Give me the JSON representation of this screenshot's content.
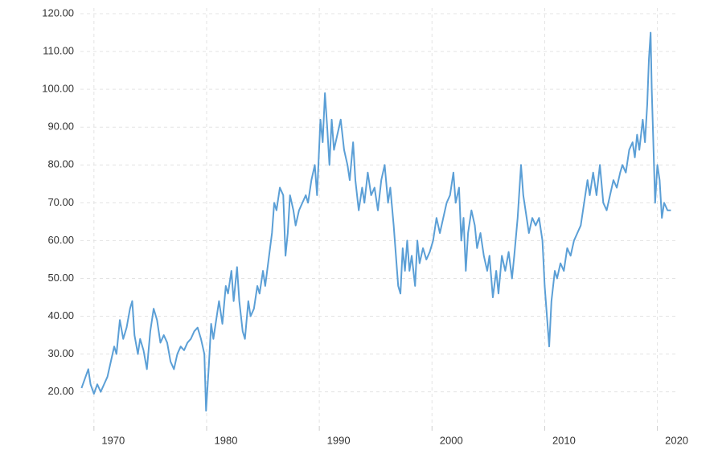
{
  "chart_data": {
    "type": "line",
    "x": [
      1968.9,
      1969.2,
      1969.5,
      1969.7,
      1970.0,
      1970.3,
      1970.6,
      1970.9,
      1971.2,
      1971.5,
      1971.8,
      1972.0,
      1972.3,
      1972.6,
      1972.9,
      1973.2,
      1973.4,
      1973.6,
      1973.9,
      1974.1,
      1974.4,
      1974.7,
      1975.0,
      1975.3,
      1975.6,
      1975.9,
      1976.2,
      1976.5,
      1976.8,
      1977.1,
      1977.4,
      1977.7,
      1978.0,
      1978.3,
      1978.6,
      1978.9,
      1979.2,
      1979.5,
      1979.8,
      1979.95,
      1980.2,
      1980.4,
      1980.6,
      1980.9,
      1981.1,
      1981.4,
      1981.7,
      1981.9,
      1982.2,
      1982.4,
      1982.7,
      1982.9,
      1983.2,
      1983.4,
      1983.7,
      1983.9,
      1984.2,
      1984.5,
      1984.7,
      1985.0,
      1985.2,
      1985.5,
      1985.8,
      1986.0,
      1986.2,
      1986.5,
      1986.8,
      1987.0,
      1987.2,
      1987.4,
      1987.7,
      1987.9,
      1988.2,
      1988.5,
      1988.8,
      1989.0,
      1989.3,
      1989.6,
      1989.8,
      1990.1,
      1990.3,
      1990.5,
      1990.7,
      1990.9,
      1991.1,
      1991.3,
      1991.6,
      1991.9,
      1992.2,
      1992.5,
      1992.7,
      1993.0,
      1993.2,
      1993.5,
      1993.8,
      1994.0,
      1994.3,
      1994.6,
      1994.9,
      1995.2,
      1995.5,
      1995.8,
      1996.1,
      1996.3,
      1996.6,
      1996.8,
      1997.0,
      1997.2,
      1997.4,
      1997.6,
      1997.8,
      1998.0,
      1998.2,
      1998.5,
      1998.7,
      1998.9,
      1999.2,
      1999.5,
      1999.8,
      2000.1,
      2000.4,
      2000.7,
      2001.0,
      2001.3,
      2001.6,
      2001.9,
      2002.1,
      2002.4,
      2002.6,
      2002.8,
      2003.0,
      2003.2,
      2003.5,
      2003.8,
      2004.0,
      2004.3,
      2004.6,
      2004.9,
      2005.1,
      2005.4,
      2005.7,
      2005.9,
      2006.2,
      2006.5,
      2006.8,
      2007.1,
      2007.3,
      2007.6,
      2007.9,
      2008.1,
      2008.4,
      2008.6,
      2008.9,
      2009.2,
      2009.5,
      2009.8,
      2010.0,
      2010.2,
      2010.4,
      2010.6,
      2010.9,
      2011.1,
      2011.4,
      2011.7,
      2012.0,
      2012.3,
      2012.6,
      2012.9,
      2013.2,
      2013.5,
      2013.8,
      2014.0,
      2014.3,
      2014.6,
      2014.9,
      2015.2,
      2015.5,
      2015.8,
      2016.1,
      2016.4,
      2016.7,
      2016.9,
      2017.2,
      2017.5,
      2017.8,
      2018.0,
      2018.2,
      2018.4,
      2018.7,
      2018.9,
      2019.1,
      2019.25,
      2019.4,
      2019.5,
      2019.6,
      2019.8,
      2020.0,
      2020.2,
      2020.4,
      2020.6,
      2020.9,
      2021.2
    ],
    "series": [
      {
        "color": "#5b9fd6",
        "values": [
          21,
          23.5,
          26,
          22,
          19.5,
          22,
          20,
          22,
          24,
          28,
          32,
          30,
          39,
          34,
          37,
          42,
          44,
          35,
          30,
          34,
          31,
          26,
          36,
          42,
          39,
          33,
          35,
          33,
          28,
          26,
          30,
          32,
          31,
          33,
          34,
          36,
          37,
          34,
          30,
          15,
          27,
          38,
          34,
          40,
          44,
          38,
          48,
          46,
          52,
          44,
          53,
          44,
          36,
          34,
          44,
          40,
          42,
          48,
          46,
          52,
          48,
          55,
          62,
          70,
          68,
          74,
          72,
          56,
          62,
          72,
          68,
          64,
          68,
          70,
          72,
          70,
          76,
          80,
          72,
          92,
          86,
          99,
          90,
          80,
          92,
          84,
          88,
          92,
          84,
          80,
          76,
          86,
          76,
          68,
          74,
          70,
          78,
          72,
          74,
          68,
          76,
          80,
          70,
          74,
          64,
          56,
          48,
          46,
          58,
          52,
          60,
          52,
          56,
          48,
          60,
          54,
          58,
          55,
          57,
          60,
          66,
          62,
          66,
          70,
          72,
          78,
          70,
          74,
          60,
          66,
          52,
          62,
          68,
          64,
          58,
          62,
          56,
          52,
          56,
          45,
          52,
          46,
          56,
          52,
          57,
          50,
          56,
          66,
          80,
          72,
          66,
          62,
          66,
          64,
          66,
          60,
          48,
          40,
          32,
          44,
          52,
          50,
          54,
          52,
          58,
          56,
          60,
          62,
          64,
          70,
          76,
          72,
          78,
          72,
          80,
          70,
          68,
          72,
          76,
          74,
          78,
          80,
          78,
          84,
          86,
          82,
          88,
          84,
          92,
          86,
          96,
          108,
          115,
          100,
          90,
          70,
          80,
          76,
          66,
          70,
          68,
          68
        ]
      }
    ],
    "xlim": [
      1968.8,
      2021.6
    ],
    "ylim": [
      11,
      121.5
    ],
    "xticks": [
      1970,
      1980,
      1990,
      2000,
      2010,
      2020
    ],
    "yticks": [
      {
        "value": 20,
        "label": "20.00"
      },
      {
        "value": 30,
        "label": "30.00"
      },
      {
        "value": 40,
        "label": "40.00"
      },
      {
        "value": 50,
        "label": "50.00"
      },
      {
        "value": 60,
        "label": "60.00"
      },
      {
        "value": 70,
        "label": "70.00"
      },
      {
        "value": 80,
        "label": "80.00"
      },
      {
        "value": 90,
        "label": "90.00"
      },
      {
        "value": 100,
        "label": "100.00"
      },
      {
        "value": 110,
        "label": "110.00"
      },
      {
        "value": 120,
        "label": "120.00"
      }
    ],
    "grid": true
  }
}
